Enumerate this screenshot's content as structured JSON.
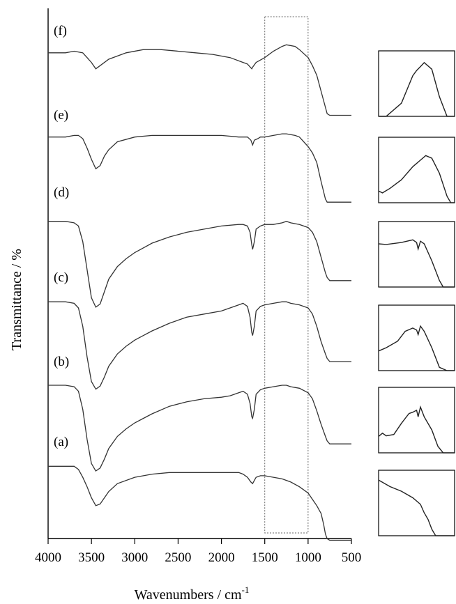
{
  "chart_data": {
    "type": "line",
    "title": "",
    "xlabel": "Wavenumbers / cm",
    "xlabel_superscript": "-1",
    "ylabel": "Transmittance / %",
    "xlim": [
      4000,
      500
    ],
    "x_reversed": true,
    "xticks": [
      4000,
      3500,
      3000,
      2500,
      2000,
      1500,
      1000,
      500
    ],
    "xtick_labels": [
      "4000",
      "3500",
      "3000",
      "2500",
      "2000",
      "1500",
      "1000",
      "500"
    ],
    "y_ticks_shown": false,
    "highlight_region": [
      1500,
      1000
    ],
    "inset_panels": 6,
    "series": [
      {
        "name": "(f)",
        "x": [
          4000,
          3800,
          3700,
          3600,
          3500,
          3450,
          3400,
          3300,
          3100,
          2900,
          2700,
          2500,
          2300,
          2100,
          1900,
          1750,
          1700,
          1650,
          1640,
          1600,
          1500,
          1400,
          1300,
          1250,
          1150,
          1100,
          1000,
          950,
          900,
          850,
          800,
          780,
          750,
          700,
          500
        ],
        "y": [
          94,
          94,
          95,
          94,
          88,
          84,
          86,
          90,
          94,
          96,
          96,
          95,
          94,
          93,
          91,
          88,
          87,
          84,
          85,
          88,
          91,
          95,
          98,
          99,
          98,
          96,
          91,
          86,
          80,
          70,
          60,
          56,
          55,
          55,
          55
        ]
      },
      {
        "name": "(e)",
        "x": [
          4000,
          3800,
          3700,
          3650,
          3600,
          3550,
          3500,
          3450,
          3400,
          3350,
          3300,
          3200,
          3000,
          2800,
          2600,
          2400,
          2200,
          2000,
          1800,
          1700,
          1660,
          1640,
          1620,
          1580,
          1550,
          1500,
          1400,
          1300,
          1250,
          1150,
          1100,
          1000,
          950,
          900,
          850,
          800,
          780,
          750,
          700,
          500
        ],
        "y": [
          94,
          94,
          95,
          95,
          93,
          87,
          80,
          74,
          76,
          82,
          86,
          91,
          94,
          95,
          95,
          95,
          95,
          95,
          94,
          94,
          92,
          89,
          92,
          93,
          94,
          94,
          95,
          96,
          96,
          95,
          94,
          88,
          84,
          78,
          66,
          55,
          53,
          53,
          53,
          53
        ]
      },
      {
        "name": "(d)",
        "x": [
          4000,
          3800,
          3700,
          3650,
          3600,
          3550,
          3500,
          3450,
          3400,
          3350,
          3300,
          3200,
          3100,
          3000,
          2900,
          2800,
          2600,
          2400,
          2200,
          2000,
          1800,
          1750,
          1700,
          1670,
          1650,
          1640,
          1620,
          1600,
          1550,
          1500,
          1400,
          1300,
          1250,
          1200,
          1100,
          1000,
          950,
          900,
          850,
          800,
          780,
          750,
          700,
          500
        ],
        "y": [
          93,
          93,
          92,
          90,
          80,
          62,
          44,
          38,
          40,
          48,
          56,
          64,
          69,
          73,
          76,
          79,
          83,
          86,
          88,
          90,
          91,
          91,
          90,
          86,
          78,
          75,
          80,
          88,
          90,
          91,
          91,
          92,
          93,
          92,
          91,
          89,
          86,
          80,
          70,
          60,
          57,
          55,
          55,
          55
        ]
      },
      {
        "name": "(c)",
        "x": [
          4000,
          3800,
          3700,
          3650,
          3600,
          3550,
          3500,
          3450,
          3400,
          3350,
          3300,
          3200,
          3100,
          3000,
          2900,
          2800,
          2600,
          2400,
          2200,
          2000,
          1900,
          1800,
          1750,
          1700,
          1670,
          1650,
          1640,
          1620,
          1600,
          1550,
          1500,
          1400,
          1300,
          1250,
          1200,
          1100,
          1000,
          950,
          900,
          850,
          800,
          780,
          750,
          700,
          500
        ],
        "y": [
          94,
          94,
          93,
          90,
          78,
          58,
          42,
          37,
          39,
          45,
          52,
          60,
          65,
          69,
          72,
          75,
          80,
          84,
          86,
          88,
          90,
          92,
          93,
          91,
          84,
          74,
          72,
          78,
          88,
          91,
          92,
          93,
          94,
          94,
          93,
          92,
          90,
          86,
          78,
          68,
          60,
          57,
          55,
          55,
          55
        ]
      },
      {
        "name": "(b)",
        "x": [
          4000,
          3800,
          3700,
          3650,
          3600,
          3550,
          3500,
          3450,
          3400,
          3350,
          3300,
          3200,
          3100,
          3000,
          2900,
          2800,
          2600,
          2400,
          2200,
          2000,
          1900,
          1800,
          1750,
          1700,
          1670,
          1650,
          1640,
          1620,
          1600,
          1550,
          1500,
          1400,
          1300,
          1250,
          1200,
          1100,
          1000,
          950,
          900,
          850,
          800,
          780,
          750,
          700,
          500
        ],
        "y": [
          94,
          94,
          93,
          90,
          78,
          58,
          42,
          37,
          39,
          45,
          52,
          60,
          65,
          69,
          72,
          75,
          80,
          83,
          85,
          86,
          87,
          89,
          90,
          88,
          82,
          73,
          72,
          78,
          88,
          91,
          92,
          93,
          94,
          94,
          93,
          92,
          89,
          85,
          77,
          68,
          60,
          57,
          55,
          55,
          55
        ]
      },
      {
        "name": "(a)",
        "x": [
          4000,
          3800,
          3700,
          3650,
          3600,
          3550,
          3500,
          3450,
          3400,
          3350,
          3300,
          3200,
          3000,
          2800,
          2600,
          2400,
          2200,
          2000,
          1800,
          1750,
          1700,
          1660,
          1640,
          1620,
          1600,
          1550,
          1500,
          1400,
          1300,
          1200,
          1100,
          1000,
          950,
          900,
          850,
          820,
          800,
          780,
          750,
          700,
          500
        ],
        "y": [
          95,
          95,
          95,
          93,
          88,
          82,
          75,
          70,
          71,
          75,
          79,
          84,
          88,
          90,
          91,
          91,
          91,
          91,
          91,
          90,
          88,
          85,
          84,
          86,
          88,
          89,
          89,
          88,
          87,
          85,
          82,
          78,
          74,
          70,
          65,
          58,
          52,
          49,
          48,
          48,
          48
        ]
      }
    ],
    "inset_traces": [
      {
        "x": [
          0,
          0.1,
          0.3,
          0.45,
          0.5,
          0.55,
          0.6,
          0.7,
          0.8,
          0.9,
          1.0
        ],
        "y": [
          -0.1,
          -0.1,
          0.2,
          0.62,
          0.7,
          0.76,
          0.82,
          0.72,
          0.3,
          -0.1,
          -0.1
        ]
      },
      {
        "x": [
          0,
          0.05,
          0.15,
          0.3,
          0.45,
          0.55,
          0.62,
          0.7,
          0.8,
          0.9,
          0.95,
          1.0
        ],
        "y": [
          0.18,
          0.15,
          0.22,
          0.35,
          0.55,
          0.65,
          0.72,
          0.68,
          0.45,
          0.1,
          -0.1,
          -0.1
        ]
      },
      {
        "x": [
          0,
          0.1,
          0.3,
          0.45,
          0.5,
          0.52,
          0.55,
          0.6,
          0.7,
          0.8,
          0.85,
          0.95,
          1.0
        ],
        "y": [
          0.66,
          0.65,
          0.68,
          0.72,
          0.68,
          0.58,
          0.7,
          0.66,
          0.4,
          0.1,
          -0.1,
          -0.1,
          -0.1
        ]
      },
      {
        "x": [
          0,
          0.1,
          0.25,
          0.35,
          0.45,
          0.5,
          0.52,
          0.55,
          0.6,
          0.7,
          0.8,
          0.9,
          1.0
        ],
        "y": [
          0.3,
          0.35,
          0.45,
          0.6,
          0.65,
          0.62,
          0.55,
          0.68,
          0.6,
          0.35,
          0.05,
          -0.1,
          -0.1
        ]
      },
      {
        "x": [
          0,
          0.05,
          0.1,
          0.2,
          0.3,
          0.4,
          0.45,
          0.5,
          0.52,
          0.55,
          0.6,
          0.7,
          0.78,
          0.85,
          1.0
        ],
        "y": [
          0.25,
          0.3,
          0.26,
          0.28,
          0.45,
          0.6,
          0.62,
          0.65,
          0.55,
          0.7,
          0.55,
          0.35,
          0.1,
          -0.1,
          -0.1
        ]
      },
      {
        "x": [
          0,
          0.15,
          0.3,
          0.45,
          0.55,
          0.6,
          0.65,
          0.7,
          0.75,
          0.8,
          1.0
        ],
        "y": [
          0.85,
          0.75,
          0.68,
          0.58,
          0.48,
          0.35,
          0.25,
          0.1,
          -0.1,
          -0.1,
          -0.1
        ]
      }
    ]
  }
}
